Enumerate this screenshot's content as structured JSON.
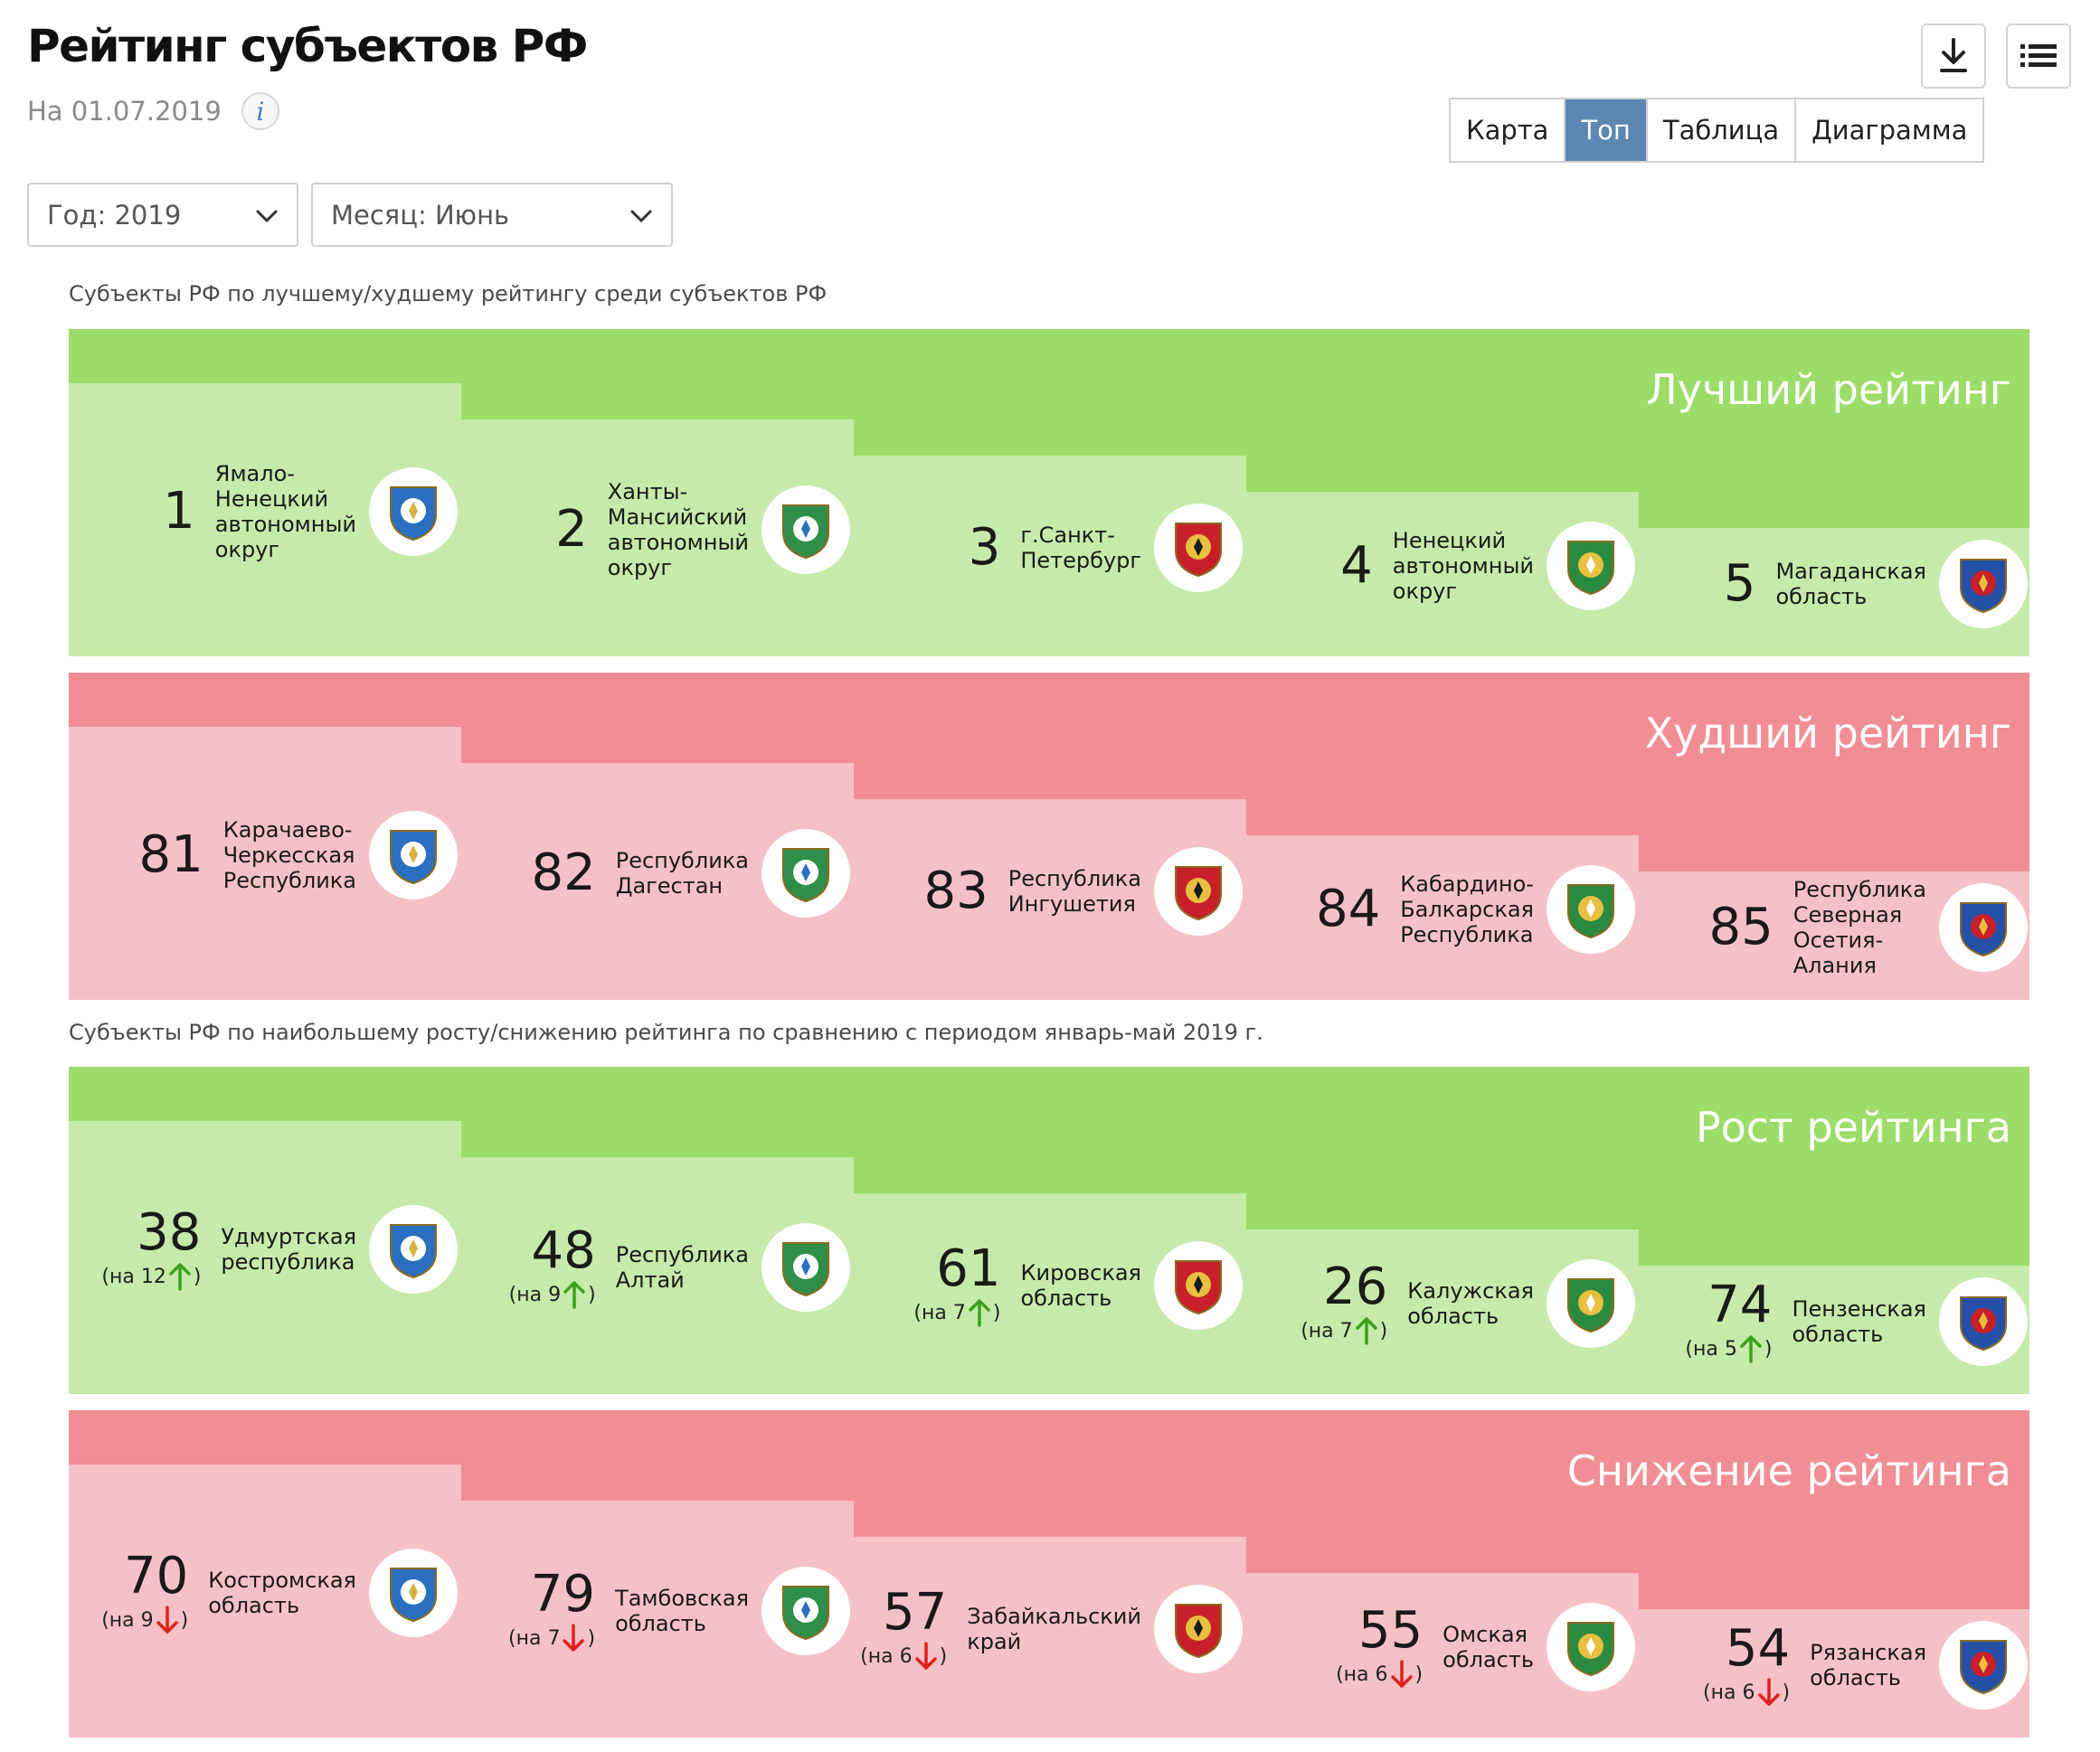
{
  "header": {
    "title": "Рейтинг субъектов РФ",
    "date": "На 01.07.2019",
    "info_glyph": "i"
  },
  "toolbar": {
    "download_icon": "download-icon",
    "menu_icon": "menu-icon"
  },
  "view_tabs": [
    {
      "label": "Карта",
      "active": false
    },
    {
      "label": "Топ",
      "active": true
    },
    {
      "label": "Таблица",
      "active": false
    },
    {
      "label": "Диаграмма",
      "active": false
    }
  ],
  "filters": {
    "year": "Год: 2019",
    "month": "Месяц: Июнь"
  },
  "captions": {
    "rating": "Субъекты РФ по лучшему/худшему рейтингу среди субъектов РФ",
    "change": "Субъекты РФ по наибольшему росту/снижению рейтинга по сравнению с периодом январь-май 2019 г."
  },
  "colors": {
    "green_dark": "#9cdc68",
    "green_light": "#c6eaaa",
    "red_dark": "#f08d95",
    "red_light": "#f5c1c6",
    "arrow_up": "#3aa21a",
    "arrow_down": "#e0201a",
    "tab_active": "#5b87b2"
  },
  "panels": [
    {
      "title": "Лучший рейтинг",
      "theme": "green",
      "items": [
        {
          "rank": "1",
          "name": [
            "Ямало-",
            "Ненецкий",
            "автономный",
            "округ"
          ],
          "emblem": "yamal-emblem-icon"
        },
        {
          "rank": "2",
          "name": [
            "Ханты-",
            "Мансийский",
            "автономный",
            "округ"
          ],
          "emblem": "khmao-emblem-icon"
        },
        {
          "rank": "3",
          "name": [
            "г.Санкт-",
            "Петербург"
          ],
          "emblem": "spb-emblem-icon"
        },
        {
          "rank": "4",
          "name": [
            "Ненецкий",
            "автономный",
            "округ"
          ],
          "emblem": "nao-emblem-icon"
        },
        {
          "rank": "5",
          "name": [
            "Магаданская",
            "область"
          ],
          "emblem": "magadan-emblem-icon"
        }
      ]
    },
    {
      "title": "Худший рейтинг",
      "theme": "red",
      "items": [
        {
          "rank": "81",
          "name": [
            "Карачаево-",
            "Черкесская",
            "Республика"
          ],
          "emblem": "kchr-emblem-icon"
        },
        {
          "rank": "82",
          "name": [
            "Республика",
            "Дагестан"
          ],
          "emblem": "dagestan-emblem-icon"
        },
        {
          "rank": "83",
          "name": [
            "Республика",
            "Ингушетия"
          ],
          "emblem": "ingushetia-emblem-icon"
        },
        {
          "rank": "84",
          "name": [
            "Кабардино-",
            "Балкарская",
            "Республика"
          ],
          "emblem": "kbr-emblem-icon"
        },
        {
          "rank": "85",
          "name": [
            "Республика",
            "Северная",
            "Осетия-",
            "Алания"
          ],
          "emblem": "north-ossetia-emblem-icon"
        }
      ]
    },
    {
      "title": "Рост рейтинга",
      "theme": "green",
      "items": [
        {
          "rank": "38",
          "delta_text": "(на 12",
          "delta_close": ")",
          "direction": "up",
          "name": [
            "Удмуртская",
            "республика"
          ],
          "emblem": "udmurtia-emblem-icon"
        },
        {
          "rank": "48",
          "delta_text": "(на 9",
          "delta_close": ")",
          "direction": "up",
          "name": [
            "Республика",
            "Алтай"
          ],
          "emblem": "altai-emblem-icon"
        },
        {
          "rank": "61",
          "delta_text": "(на 7",
          "delta_close": ")",
          "direction": "up",
          "name": [
            "Кировская",
            "область"
          ],
          "emblem": "kirov-emblem-icon"
        },
        {
          "rank": "26",
          "delta_text": "(на 7",
          "delta_close": ")",
          "direction": "up",
          "name": [
            "Калужская",
            "область"
          ],
          "emblem": "kaluga-emblem-icon"
        },
        {
          "rank": "74",
          "delta_text": "(на 5",
          "delta_close": ")",
          "direction": "up",
          "name": [
            "Пензенская",
            "область"
          ],
          "emblem": "penza-emblem-icon"
        }
      ]
    },
    {
      "title": "Снижение рейтинга",
      "theme": "red",
      "items": [
        {
          "rank": "70",
          "delta_text": "(на 9",
          "delta_close": ")",
          "direction": "down",
          "name": [
            "Костромская",
            "область"
          ],
          "emblem": "kostroma-emblem-icon"
        },
        {
          "rank": "79",
          "delta_text": "(на 7",
          "delta_close": ")",
          "direction": "down",
          "name": [
            "Тамбовская",
            "область"
          ],
          "emblem": "tambov-emblem-icon"
        },
        {
          "rank": "57",
          "delta_text": "(на 6",
          "delta_close": ")",
          "direction": "down",
          "name": [
            "Забайкальский",
            "край"
          ],
          "emblem": "zabaikalsky-emblem-icon"
        },
        {
          "rank": "55",
          "delta_text": "(на 6",
          "delta_close": ")",
          "direction": "down",
          "name": [
            "Омская",
            "область"
          ],
          "emblem": "omsk-emblem-icon"
        },
        {
          "rank": "54",
          "delta_text": "(на 6",
          "delta_close": ")",
          "direction": "down",
          "name": [
            "Рязанская",
            "область"
          ],
          "emblem": "ryazan-emblem-icon"
        }
      ]
    }
  ]
}
